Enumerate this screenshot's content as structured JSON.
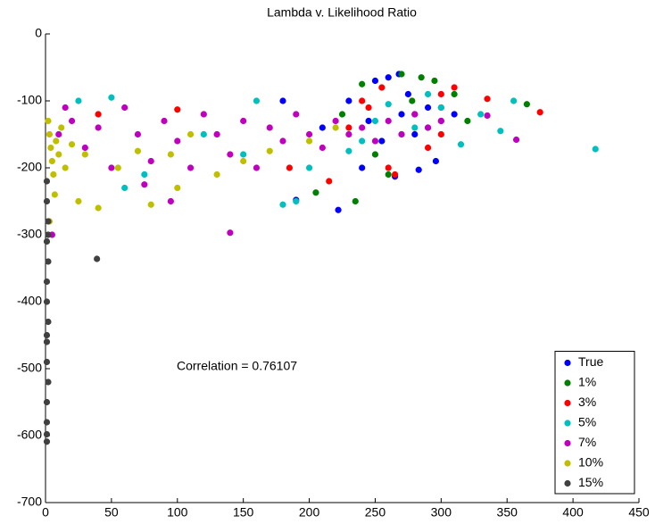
{
  "chart_data": {
    "type": "scatter",
    "title": "Lambda v. Likelihood Ratio",
    "annotation": "Correlation = 0.76107",
    "xlim": [
      0,
      450
    ],
    "xticks": [
      0,
      50,
      100,
      150,
      200,
      250,
      300,
      350,
      400,
      450
    ],
    "ylim": [
      -700,
      0
    ],
    "yticks": [
      -700,
      -600,
      -500,
      -400,
      -300,
      -200,
      -100,
      0
    ],
    "legend": "lower right",
    "series": [
      {
        "name": "True",
        "color": "#0000ff",
        "x": [
          230,
          250,
          260,
          270,
          280,
          290,
          300,
          240,
          222,
          265,
          283,
          296,
          255,
          275,
          210,
          245,
          180,
          190,
          310,
          268
        ],
        "values": [
          -100,
          -70,
          -65,
          -120,
          -150,
          -110,
          -130,
          -200,
          -263,
          -213,
          -203,
          -190,
          -160,
          -90,
          -140,
          -130,
          -100,
          -248,
          -120,
          -60
        ]
      },
      {
        "name": "1%",
        "color": "#008000",
        "x": [
          270,
          285,
          240,
          300,
          320,
          365,
          235,
          205,
          260,
          250,
          290,
          278,
          225,
          310,
          295
        ],
        "values": [
          -60,
          -65,
          -75,
          -110,
          -130,
          -105,
          -250,
          -237,
          -210,
          -180,
          -140,
          -100,
          -120,
          -90,
          -70
        ]
      },
      {
        "name": "3%",
        "color": "#ff0000",
        "x": [
          375,
          335,
          300,
          310,
          255,
          280,
          230,
          100,
          40,
          260,
          215,
          290,
          265,
          185,
          245,
          300,
          240
        ],
        "values": [
          -117,
          -97,
          -90,
          -80,
          -80,
          -120,
          -140,
          -113,
          -120,
          -200,
          -220,
          -170,
          -210,
          -200,
          -110,
          -150,
          -100
        ]
      },
      {
        "name": "5%",
        "color": "#00bfbf",
        "x": [
          417,
          355,
          345,
          315,
          330,
          180,
          190,
          150,
          120,
          75,
          60,
          25,
          50,
          160,
          200,
          250,
          270,
          290,
          300,
          240,
          260,
          280,
          230
        ],
        "values": [
          -172,
          -100,
          -145,
          -165,
          -120,
          -255,
          -250,
          -180,
          -150,
          -210,
          -230,
          -100,
          -95,
          -100,
          -200,
          -130,
          -150,
          -90,
          -110,
          -160,
          -105,
          -140,
          -175
        ]
      },
      {
        "name": "7%",
        "color": "#bf00bf",
        "x": [
          5,
          10,
          20,
          30,
          40,
          50,
          60,
          70,
          80,
          90,
          100,
          110,
          120,
          130,
          140,
          140,
          150,
          160,
          170,
          180,
          190,
          200,
          210,
          220,
          230,
          240,
          250,
          260,
          270,
          280,
          290,
          300,
          357,
          335,
          95,
          75,
          15
        ],
        "values": [
          -300,
          -150,
          -130,
          -170,
          -140,
          -200,
          -110,
          -150,
          -190,
          -130,
          -160,
          -200,
          -120,
          -150,
          -297,
          -180,
          -130,
          -200,
          -140,
          -160,
          -120,
          -150,
          -170,
          -130,
          -150,
          -140,
          -160,
          -130,
          -150,
          -120,
          -140,
          -130,
          -158,
          -122,
          -250,
          -225,
          -110
        ]
      },
      {
        "name": "10%",
        "color": "#bfbf00",
        "x": [
          2,
          3,
          4,
          5,
          6,
          8,
          10,
          12,
          15,
          20,
          25,
          30,
          40,
          55,
          70,
          80,
          95,
          100,
          110,
          130,
          150,
          170,
          200,
          220,
          7,
          3
        ],
        "values": [
          -130,
          -150,
          -170,
          -190,
          -210,
          -160,
          -180,
          -140,
          -200,
          -165,
          -250,
          -180,
          -260,
          -200,
          -175,
          -255,
          -180,
          -230,
          -150,
          -210,
          -190,
          -175,
          -160,
          -140,
          -240,
          -280
        ]
      },
      {
        "name": "15%",
        "color": "#404040",
        "x": [
          1,
          1,
          2,
          1,
          2,
          1,
          1,
          2,
          1,
          1,
          2,
          1,
          1,
          1,
          1,
          39,
          2,
          1
        ],
        "values": [
          -220,
          -250,
          -280,
          -310,
          -340,
          -370,
          -400,
          -430,
          -460,
          -490,
          -520,
          -550,
          -580,
          -598,
          -609,
          -336,
          -300,
          -450
        ]
      }
    ]
  }
}
